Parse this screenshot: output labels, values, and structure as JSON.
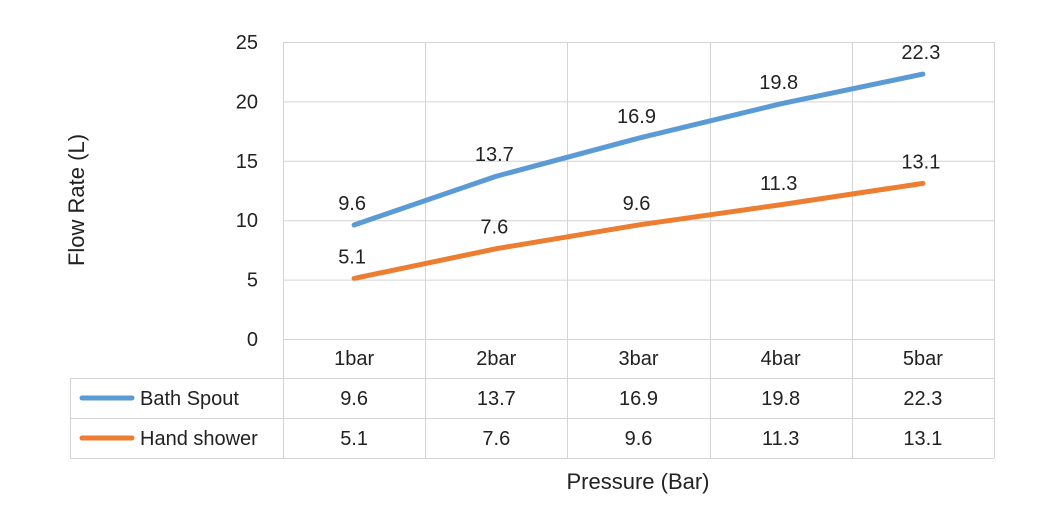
{
  "chart_data": {
    "type": "line",
    "ylabel": "Flow Rate (L)",
    "xlabel": "Pressure (Bar)",
    "categories": [
      "1bar",
      "2bar",
      "3bar",
      "4bar",
      "5bar"
    ],
    "ylim": [
      0,
      25
    ],
    "yticks": [
      0,
      5,
      10,
      15,
      20,
      25
    ],
    "grid": true,
    "legend": "data-table",
    "series": [
      {
        "name": "Bath Spout",
        "color": "#5B9BD5",
        "values": [
          9.6,
          13.7,
          16.9,
          19.8,
          22.3
        ]
      },
      {
        "name": "Hand shower",
        "color": "#ED7D31",
        "values": [
          5.1,
          7.6,
          9.6,
          11.3,
          13.1
        ]
      }
    ]
  }
}
